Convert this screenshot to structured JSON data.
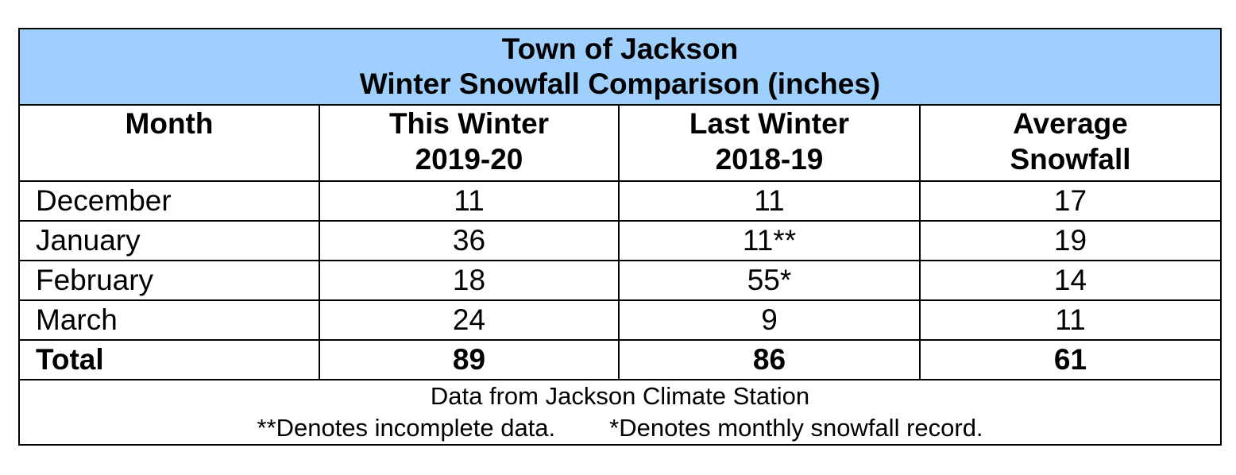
{
  "title_line1": "Town of Jackson",
  "title_line2": "Winter Snowfall Comparison (inches)",
  "headers": [
    {
      "line1": "Month",
      "line2": ""
    },
    {
      "line1": "This Winter",
      "line2": "2019-20"
    },
    {
      "line1": "Last Winter",
      "line2": "2018-19"
    },
    {
      "line1": "Average",
      "line2": "Snowfall"
    }
  ],
  "rows": [
    [
      "December",
      "11",
      "11",
      "17"
    ],
    [
      "January",
      "36",
      "11**",
      "19"
    ],
    [
      "February",
      "18",
      "55*",
      "14"
    ],
    [
      "March",
      "24",
      "9",
      "11"
    ]
  ],
  "total": [
    "Total",
    "89",
    "86",
    "61"
  ],
  "footer": {
    "source": "Data from Jackson Climate Station",
    "note1": "**Denotes incomplete data.",
    "note2": "*Denotes monthly snowfall record."
  },
  "colors": {
    "header_bg": "#9fcffd",
    "border": "#000000"
  },
  "chart_data": {
    "type": "table",
    "title": "Town of Jackson Winter Snowfall Comparison (inches)",
    "columns": [
      "Month",
      "This Winter 2019-20",
      "Last Winter 2018-19",
      "Average Snowfall"
    ],
    "rows": [
      [
        "December",
        11,
        11,
        17
      ],
      [
        "January",
        36,
        "11**",
        19
      ],
      [
        "February",
        18,
        "55*",
        14
      ],
      [
        "March",
        24,
        9,
        11
      ],
      [
        "Total",
        89,
        86,
        61
      ]
    ]
  }
}
